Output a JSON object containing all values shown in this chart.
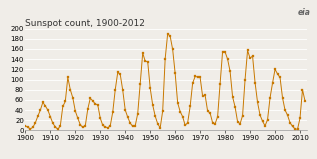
{
  "title": "Sunspot count, 1900-2012",
  "xlim": [
    1900,
    2013
  ],
  "ylim": [
    0,
    200
  ],
  "yticks": [
    0,
    20,
    40,
    60,
    80,
    100,
    120,
    140,
    160,
    180,
    200
  ],
  "xticks": [
    1900,
    1910,
    1920,
    1930,
    1940,
    1950,
    1960,
    1970,
    1980,
    1990,
    2000,
    2010
  ],
  "line_color": "#c87800",
  "marker_color": "#c87800",
  "background_color": "#f0ede8",
  "grid_color": "#ffffff",
  "title_fontsize": 6.5,
  "tick_fontsize": 5.0,
  "years": [
    1900,
    1901,
    1902,
    1903,
    1904,
    1905,
    1906,
    1907,
    1908,
    1909,
    1910,
    1911,
    1912,
    1913,
    1914,
    1915,
    1916,
    1917,
    1918,
    1919,
    1920,
    1921,
    1922,
    1923,
    1924,
    1925,
    1926,
    1927,
    1928,
    1929,
    1930,
    1931,
    1932,
    1933,
    1934,
    1935,
    1936,
    1937,
    1938,
    1939,
    1940,
    1941,
    1942,
    1943,
    1944,
    1945,
    1946,
    1947,
    1948,
    1949,
    1950,
    1951,
    1952,
    1953,
    1954,
    1955,
    1956,
    1957,
    1958,
    1959,
    1960,
    1961,
    1962,
    1963,
    1964,
    1965,
    1966,
    1967,
    1968,
    1969,
    1970,
    1971,
    1972,
    1973,
    1974,
    1975,
    1976,
    1977,
    1978,
    1979,
    1980,
    1981,
    1982,
    1983,
    1984,
    1985,
    1986,
    1987,
    1988,
    1989,
    1990,
    1991,
    1992,
    1993,
    1994,
    1995,
    1996,
    1997,
    1998,
    1999,
    2000,
    2001,
    2002,
    2003,
    2004,
    2005,
    2006,
    2007,
    2008,
    2009,
    2010,
    2011,
    2012
  ],
  "values": [
    9,
    6,
    3,
    6,
    15,
    28,
    40,
    55,
    48,
    40,
    27,
    14,
    7,
    2,
    9,
    47,
    57,
    104,
    80,
    64,
    38,
    24,
    11,
    6,
    9,
    42,
    63,
    58,
    52,
    50,
    24,
    10,
    7,
    5,
    9,
    36,
    80,
    114,
    110,
    79,
    40,
    26,
    14,
    8,
    9,
    33,
    92,
    152,
    136,
    135,
    83,
    50,
    28,
    13,
    5,
    38,
    141,
    190,
    185,
    159,
    112,
    54,
    37,
    27,
    10,
    15,
    47,
    93,
    106,
    105,
    104,
    67,
    69,
    38,
    34,
    15,
    13,
    27,
    92,
    155,
    154,
    140,
    116,
    66,
    46,
    17,
    13,
    29,
    100,
    157,
    142,
    146,
    94,
    55,
    30,
    18,
    9,
    21,
    64,
    93,
    120,
    111,
    104,
    64,
    40,
    30,
    15,
    8,
    3,
    2,
    24,
    80,
    58
  ]
}
